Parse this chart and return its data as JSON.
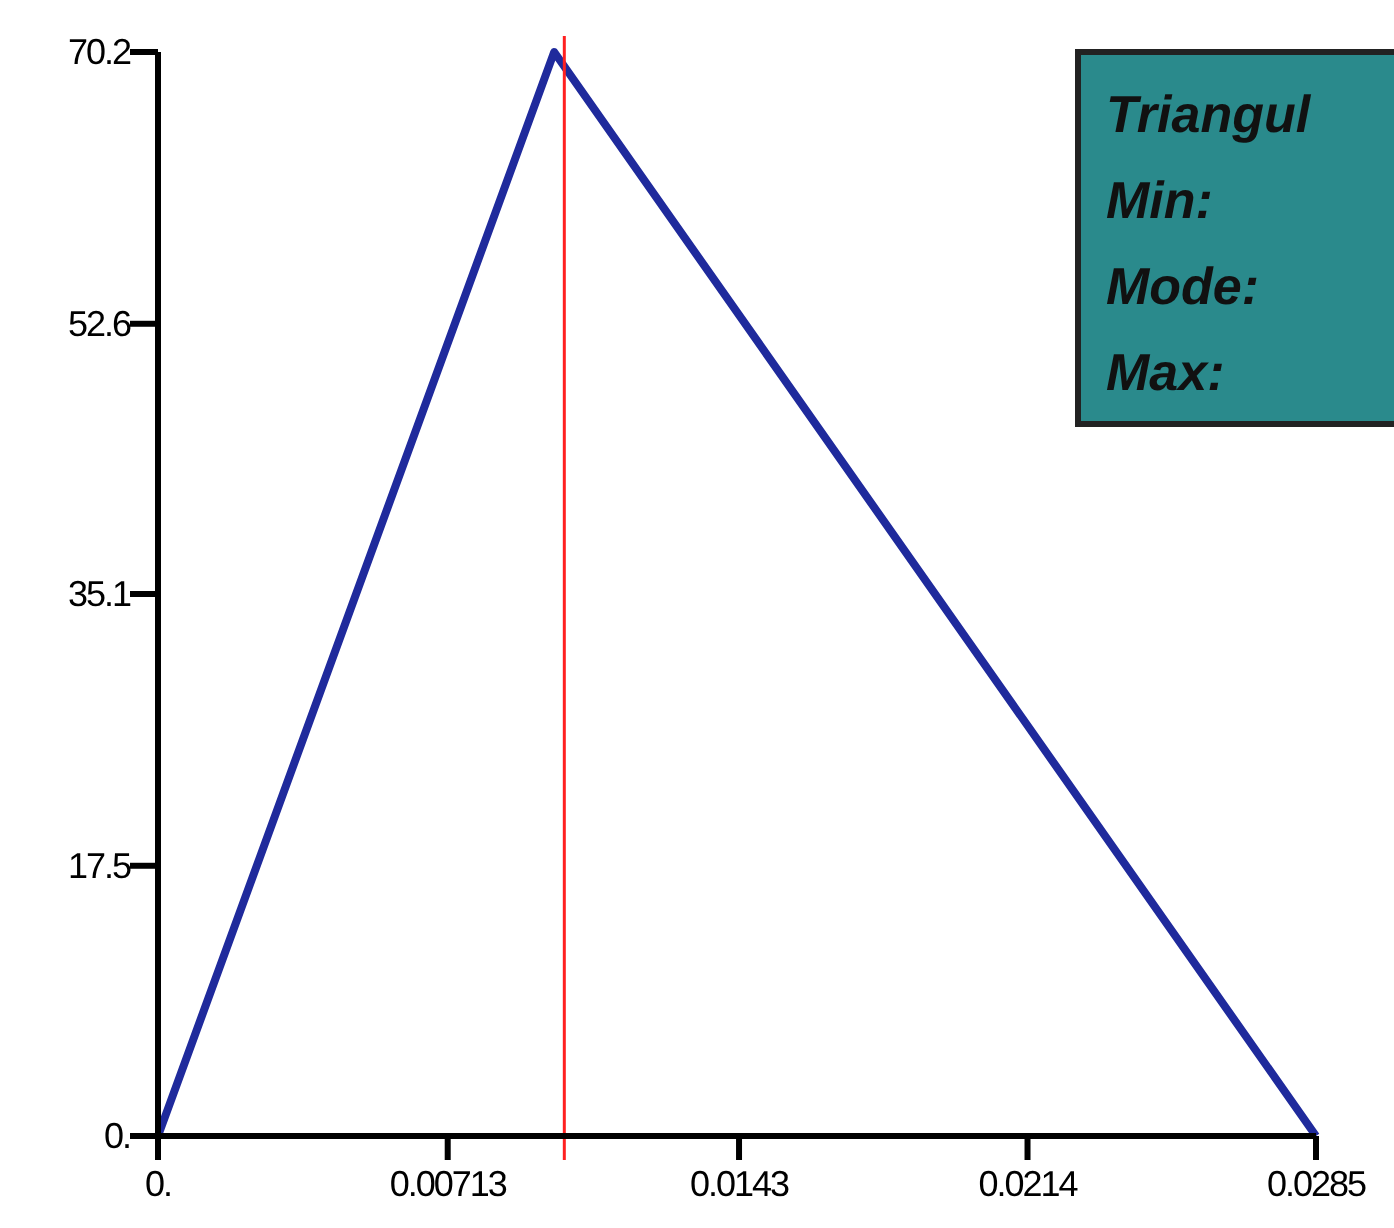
{
  "chart_data": {
    "type": "line",
    "x": [
      0,
      0.00975,
      0.0285
    ],
    "series": [
      {
        "color": "#1f2a9c",
        "values": [
          0,
          70.2,
          0
        ]
      }
    ],
    "xlim": [
      0,
      0.0285
    ],
    "xticks": [
      {
        "value": 0,
        "label": "0."
      },
      0.00713,
      0.0143,
      0.0214,
      0.0285
    ],
    "ylim": [
      0,
      70.2
    ],
    "yticks": [
      {
        "value": 0,
        "label": "0."
      },
      17.5,
      35.1,
      52.6,
      70.2
    ],
    "marker": "none",
    "line_style": "solid",
    "ref_lines": [
      {
        "axis": "x",
        "value": 0.01,
        "color": "#ff2020"
      }
    ],
    "annotations": [
      "Triangul",
      "Min:",
      "Mode:",
      "Max:"
    ]
  }
}
